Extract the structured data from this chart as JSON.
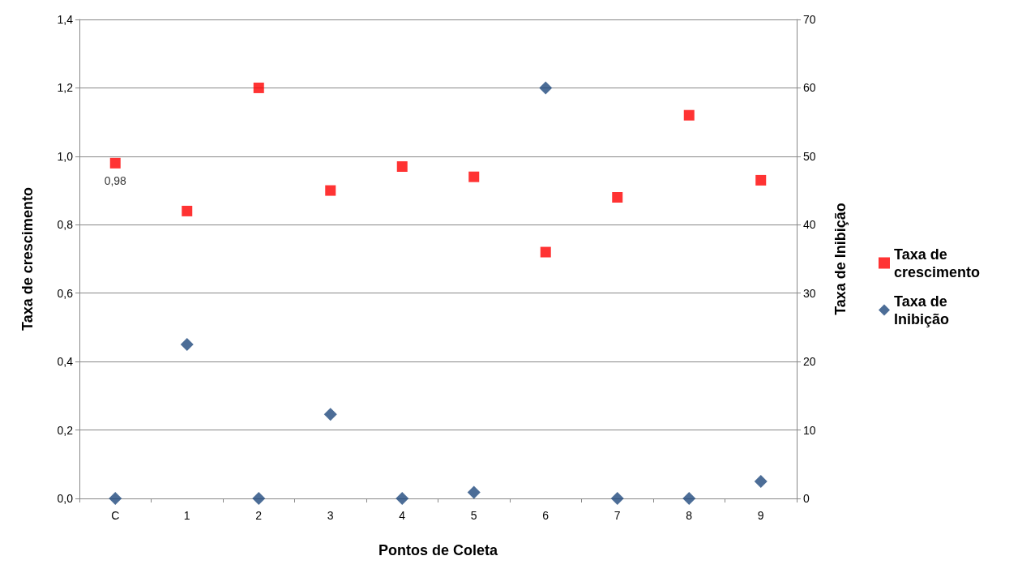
{
  "chart_data": {
    "type": "scatter",
    "xlabel": "Pontos de Coleta",
    "ylabel": "Taxa de crescimento",
    "y2label": "Taxa de Inibição",
    "categories": [
      "C",
      "1",
      "2",
      "3",
      "4",
      "5",
      "6",
      "7",
      "8",
      "9"
    ],
    "series": [
      {
        "name": "Taxa de crescimento",
        "color": "#ff0000",
        "marker": "square",
        "values": [
          0.98,
          0.84,
          1.2,
          0.9,
          0.97,
          0.94,
          0.72,
          0.88,
          1.12,
          0.93
        ],
        "value_labels": [
          "0,98",
          null,
          null,
          null,
          null,
          null,
          null,
          null,
          null,
          null
        ]
      },
      {
        "name": "Taxa de Inibição",
        "color": "#1f497d",
        "marker": "diamond",
        "axis": "y2",
        "values": [
          0,
          22.5,
          0,
          12.3,
          0,
          0.9,
          60,
          0,
          0,
          2.5
        ]
      }
    ],
    "ylim": [
      0,
      1.4
    ],
    "yticks": [
      {
        "value": 0,
        "label": "0,0"
      },
      {
        "value": 0.2,
        "label": "0,2"
      },
      {
        "value": 0.4,
        "label": "0,4"
      },
      {
        "value": 0.6,
        "label": "0,6"
      },
      {
        "value": 0.8,
        "label": "0,8"
      },
      {
        "value": 1,
        "label": "1,0"
      },
      {
        "value": 1.2,
        "label": "1,2"
      },
      {
        "value": 1.4,
        "label": "1,4"
      }
    ],
    "y2lim": [
      0,
      70
    ],
    "y2ticks": [
      0,
      10,
      20,
      30,
      40,
      50,
      60,
      70
    ],
    "grid": "y",
    "legend": "right"
  }
}
